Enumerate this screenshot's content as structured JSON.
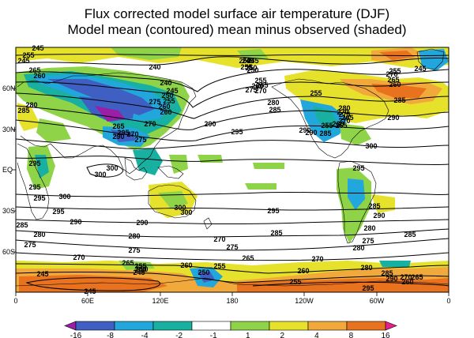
{
  "title_line1": "Flux corrected model surface air temperature (DJF)",
  "title_line2": "Model mean (contoured)  mean minus observed (shaded)",
  "axes": {
    "x_ticks": [
      "0",
      "60E",
      "120E",
      "180",
      "120W",
      "60W",
      "0"
    ],
    "y_ticks": [
      "60N",
      "30N",
      "EQ",
      "30S",
      "60S"
    ]
  },
  "colorbar": {
    "labels": [
      "-16",
      "-8",
      "-4",
      "-2",
      "-1",
      "1",
      "2",
      "4",
      "8",
      "16"
    ],
    "colors": [
      "#9b1fa6",
      "#3f5fc2",
      "#22a7dd",
      "#18b0a0",
      "#ffffff",
      "#8fd448",
      "#e6e22c",
      "#f2a93b",
      "#e8721d",
      "#e81e8c"
    ]
  },
  "contour_labels": [
    {
      "text": "245"
    },
    {
      "text": "255"
    },
    {
      "text": "245"
    },
    {
      "text": "250"
    },
    {
      "text": "255"
    },
    {
      "text": "265"
    },
    {
      "text": "260"
    },
    {
      "text": "240"
    },
    {
      "text": "240"
    },
    {
      "text": "245"
    },
    {
      "text": "250"
    },
    {
      "text": "255"
    },
    {
      "text": "260"
    },
    {
      "text": "270"
    },
    {
      "text": "275"
    },
    {
      "text": "280"
    },
    {
      "text": "285"
    },
    {
      "text": "265"
    },
    {
      "text": "260"
    },
    {
      "text": "270"
    },
    {
      "text": "275"
    },
    {
      "text": "290"
    },
    {
      "text": "295"
    },
    {
      "text": "290"
    },
    {
      "text": "245"
    },
    {
      "text": "250"
    },
    {
      "text": "255"
    },
    {
      "text": "260"
    },
    {
      "text": "265"
    },
    {
      "text": "270"
    },
    {
      "text": "275"
    },
    {
      "text": "280"
    },
    {
      "text": "285"
    },
    {
      "text": "290"
    },
    {
      "text": "295"
    },
    {
      "text": "300"
    },
    {
      "text": "300"
    },
    {
      "text": "295"
    },
    {
      "text": "295"
    },
    {
      "text": "300"
    },
    {
      "text": "295"
    },
    {
      "text": "300"
    },
    {
      "text": "290"
    },
    {
      "text": "295"
    },
    {
      "text": "300"
    },
    {
      "text": "295"
    },
    {
      "text": "285"
    },
    {
      "text": "290"
    },
    {
      "text": "280"
    },
    {
      "text": "285"
    },
    {
      "text": "275"
    },
    {
      "text": "280"
    },
    {
      "text": "275"
    },
    {
      "text": "285"
    },
    {
      "text": "280"
    },
    {
      "text": "275"
    },
    {
      "text": "270"
    },
    {
      "text": "265"
    },
    {
      "text": "260"
    },
    {
      "text": "255"
    },
    {
      "text": "250"
    },
    {
      "text": "245"
    },
    {
      "text": "245"
    },
    {
      "text": "270"
    },
    {
      "text": "265"
    },
    {
      "text": "260"
    },
    {
      "text": "255"
    },
    {
      "text": "250"
    },
    {
      "text": "245"
    },
    {
      "text": "270"
    },
    {
      "text": "265"
    },
    {
      "text": "260"
    },
    {
      "text": "255"
    },
    {
      "text": "270"
    },
    {
      "text": "265"
    },
    {
      "text": "260"
    },
    {
      "text": "245"
    },
    {
      "text": "255"
    },
    {
      "text": "250"
    },
    {
      "text": "245"
    },
    {
      "text": "285"
    },
    {
      "text": "280"
    },
    {
      "text": "275"
    },
    {
      "text": "270"
    },
    {
      "text": "265"
    },
    {
      "text": "255"
    },
    {
      "text": "290"
    },
    {
      "text": "285"
    },
    {
      "text": "290"
    },
    {
      "text": "300"
    },
    {
      "text": "295"
    },
    {
      "text": "290"
    },
    {
      "text": "285"
    },
    {
      "text": "280"
    },
    {
      "text": "275"
    },
    {
      "text": "270"
    },
    {
      "text": "260"
    },
    {
      "text": "255"
    },
    {
      "text": "280"
    },
    {
      "text": "285"
    },
    {
      "text": "290"
    },
    {
      "text": "295"
    },
    {
      "text": "270"
    },
    {
      "text": "265"
    },
    {
      "text": "260"
    }
  ]
}
